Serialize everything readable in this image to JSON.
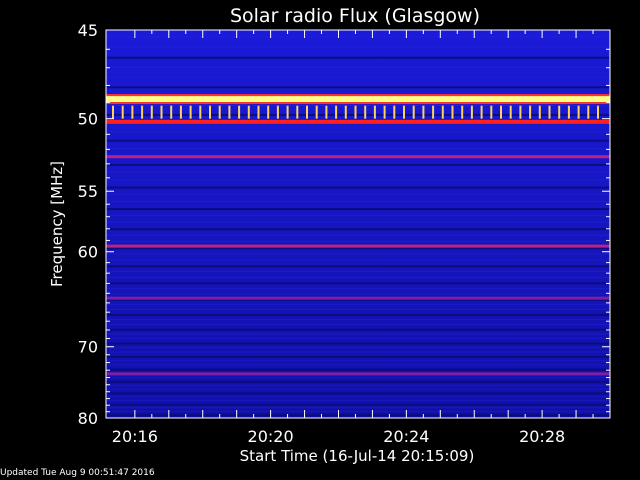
{
  "chart_data": {
    "type": "heatmap",
    "title": "Solar radio Flux (Glasgow)",
    "xlabel": "Start Time (16-Jul-14 20:15:09)",
    "ylabel": "Frequency [MHz]",
    "x_ticks": [
      "20:16",
      "20:20",
      "20:24",
      "20:28"
    ],
    "y_ticks": [
      45,
      50,
      55,
      60,
      70,
      80
    ],
    "y_scale": "reciprocal",
    "ylim": [
      45,
      80
    ],
    "background_color": "#1414c8",
    "intense_bands_mhz": [
      {
        "freq": 48.8,
        "level": "saturated",
        "color": "#ffff80"
      },
      {
        "freq": 50.2,
        "level": "high",
        "color": "#ff2020"
      },
      {
        "freq": 52.5,
        "level": "moderate",
        "color": "#c02080"
      },
      {
        "freq": 59.5,
        "level": "moderate",
        "color": "#c02080"
      },
      {
        "freq": 64.5,
        "level": "low",
        "color": "#8020a0"
      },
      {
        "freq": 73.5,
        "level": "low",
        "color": "#8020a0"
      }
    ],
    "colormap": [
      "#000040",
      "#1414c8",
      "#8020a0",
      "#ff2020",
      "#ffff80"
    ]
  },
  "footer": {
    "updated": "Updated Tue Aug  9 00:51:47 2016"
  }
}
